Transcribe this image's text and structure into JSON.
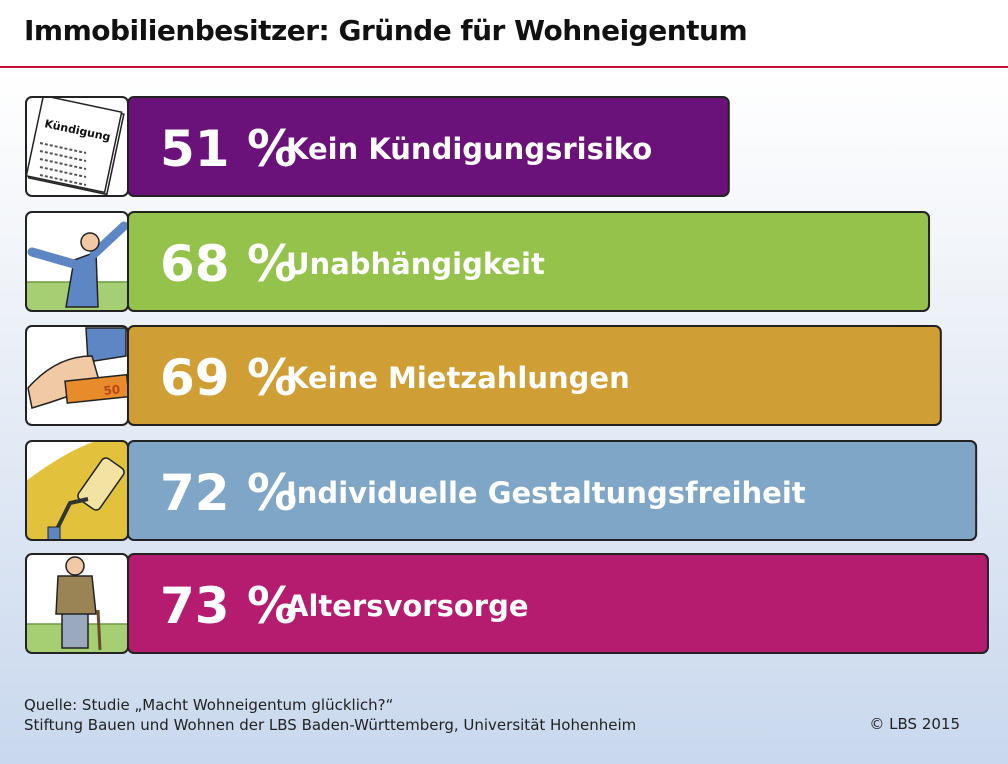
{
  "title": "Immobilienbesitzer: Gründe für Wohneigentum",
  "chart_data": {
    "type": "bar",
    "orientation": "horizontal",
    "unit": "%",
    "categories": [
      "Kein Kündigungsrisiko",
      "Unabhängigkeit",
      "Keine Mietzahlungen",
      "Individuelle Gestaltungsfreiheit",
      "Altersvorsorge"
    ],
    "values": [
      51,
      68,
      69,
      72,
      73
    ],
    "value_labels": [
      "51 %",
      "68 %",
      "69 %",
      "72 %",
      "73 %"
    ],
    "colors": [
      "#6a1279",
      "#95c24b",
      "#cf9e35",
      "#7fa6c6",
      "#b51c70"
    ],
    "icons": [
      "kuendigung-document-icon",
      "cheering-man-icon",
      "money-hand-icon",
      "paint-roller-icon",
      "elderly-man-cane-icon"
    ],
    "icon_texts": {
      "document": "Kündigung",
      "banknote": "50"
    }
  },
  "footer": {
    "source_line1": "Quelle: Studie „Macht Wohneigentum glücklich?“",
    "source_line2": "Stiftung Bauen und Wohnen der LBS Baden-Württemberg, Universität Hohenheim",
    "copyright": "© LBS 2015"
  }
}
